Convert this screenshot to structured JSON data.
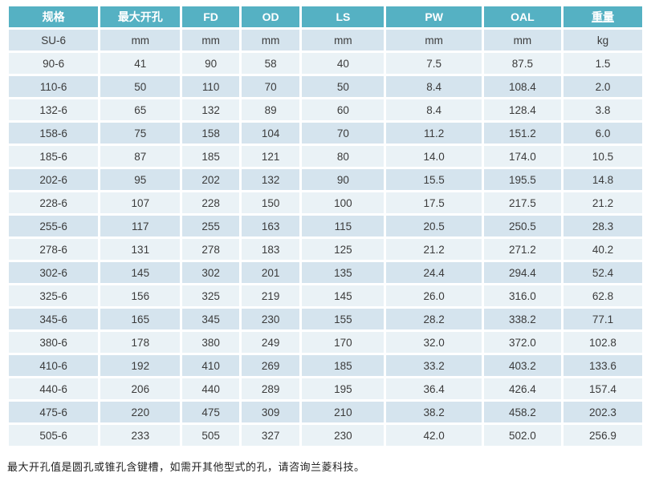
{
  "table": {
    "headers": [
      "规格",
      "最大开孔",
      "FD",
      "OD",
      "LS",
      "PW",
      "OAL",
      "重量"
    ],
    "unit_row": [
      "SU-6",
      "mm",
      "mm",
      "mm",
      "mm",
      "mm",
      "mm",
      "kg"
    ],
    "rows": [
      [
        "90-6",
        "41",
        "90",
        "58",
        "40",
        "7.5",
        "87.5",
        "1.5"
      ],
      [
        "110-6",
        "50",
        "110",
        "70",
        "50",
        "8.4",
        "108.4",
        "2.0"
      ],
      [
        "132-6",
        "65",
        "132",
        "89",
        "60",
        "8.4",
        "128.4",
        "3.8"
      ],
      [
        "158-6",
        "75",
        "158",
        "104",
        "70",
        "11.2",
        "151.2",
        "6.0"
      ],
      [
        "185-6",
        "87",
        "185",
        "121",
        "80",
        "14.0",
        "174.0",
        "10.5"
      ],
      [
        "202-6",
        "95",
        "202",
        "132",
        "90",
        "15.5",
        "195.5",
        "14.8"
      ],
      [
        "228-6",
        "107",
        "228",
        "150",
        "100",
        "17.5",
        "217.5",
        "21.2"
      ],
      [
        "255-6",
        "117",
        "255",
        "163",
        "115",
        "20.5",
        "250.5",
        "28.3"
      ],
      [
        "278-6",
        "131",
        "278",
        "183",
        "125",
        "21.2",
        "271.2",
        "40.2"
      ],
      [
        "302-6",
        "145",
        "302",
        "201",
        "135",
        "24.4",
        "294.4",
        "52.4"
      ],
      [
        "325-6",
        "156",
        "325",
        "219",
        "145",
        "26.0",
        "316.0",
        "62.8"
      ],
      [
        "345-6",
        "165",
        "345",
        "230",
        "155",
        "28.2",
        "338.2",
        "77.1"
      ],
      [
        "380-6",
        "178",
        "380",
        "249",
        "170",
        "32.0",
        "372.0",
        "102.8"
      ],
      [
        "410-6",
        "192",
        "410",
        "269",
        "185",
        "33.2",
        "403.2",
        "133.6"
      ],
      [
        "440-6",
        "206",
        "440",
        "289",
        "195",
        "36.4",
        "426.4",
        "157.4"
      ],
      [
        "475-6",
        "220",
        "475",
        "309",
        "210",
        "38.2",
        "458.2",
        "202.3"
      ],
      [
        "505-6",
        "233",
        "505",
        "327",
        "230",
        "42.0",
        "502.0",
        "256.9"
      ]
    ]
  },
  "footer_note": "最大开孔值是圆孔或锥孔含键槽，如需开其他型式的孔，请咨询兰菱科技。",
  "colors": {
    "header_bg": "#55b1c3",
    "header_text": "#ffffff",
    "row_dark": "#d5e4ee",
    "row_light": "#eaf2f6",
    "cell_text": "#3b3b3b"
  }
}
